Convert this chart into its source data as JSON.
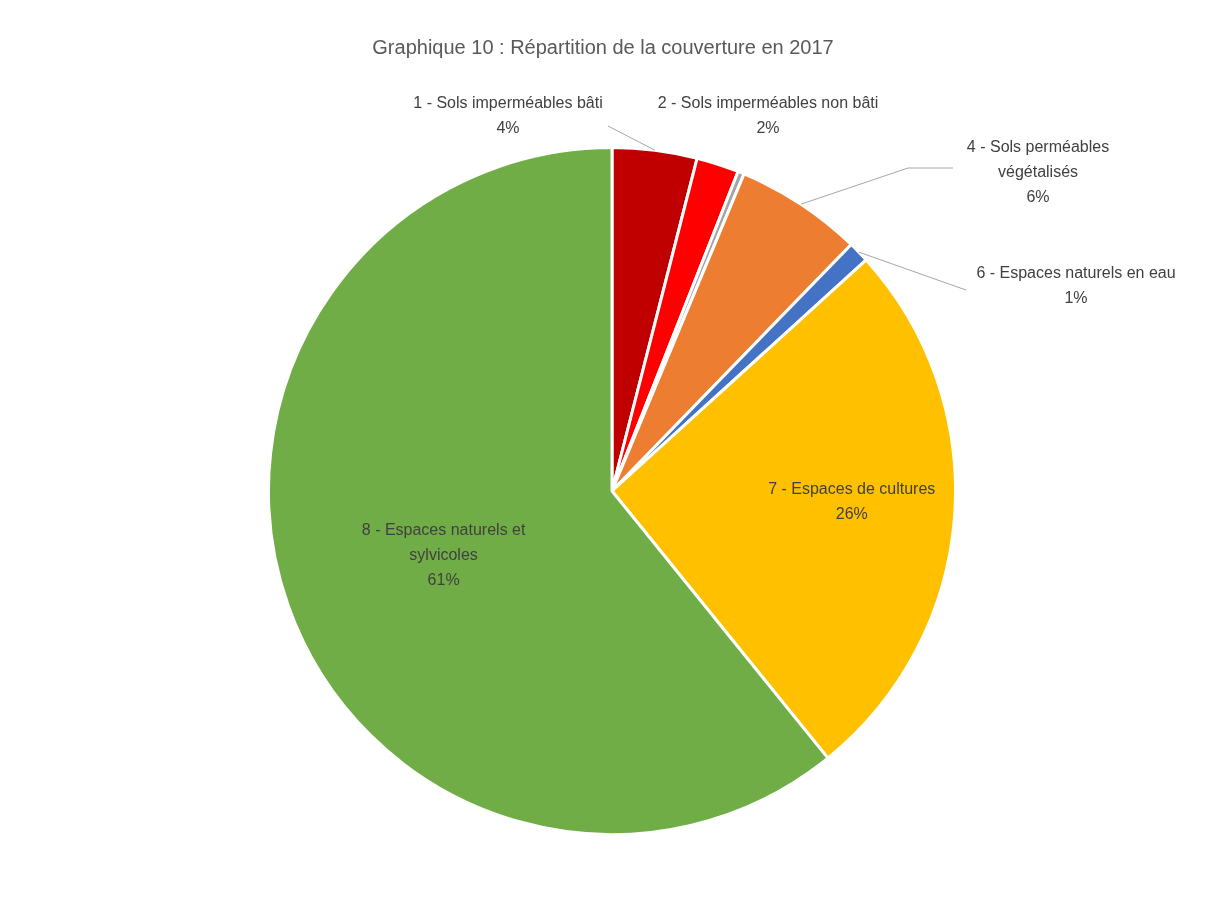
{
  "chart_data": {
    "type": "pie",
    "title": "Graphique 10 : Répartition de la couverture en 2017",
    "categories": [
      "1 - Sols imperméables bâti",
      "2 - Sols imperméables non bâti",
      null,
      "4 - Sols perméables végétalisés",
      "6 - Espaces naturels en eau",
      "7 - Espaces de cultures",
      "8 - Espaces naturels et sylvicoles"
    ],
    "values": [
      4,
      2,
      0.3,
      6,
      1,
      26,
      61
    ],
    "colors": [
      "#c00000",
      "#ff0000",
      "#a5a5a5",
      "#ed7d31",
      "#4472c4",
      "#ffc000",
      "#70ad47"
    ],
    "value_labels": [
      "4%",
      "2%",
      null,
      "6%",
      "1%",
      "26%",
      "61%"
    ],
    "legend": false
  }
}
